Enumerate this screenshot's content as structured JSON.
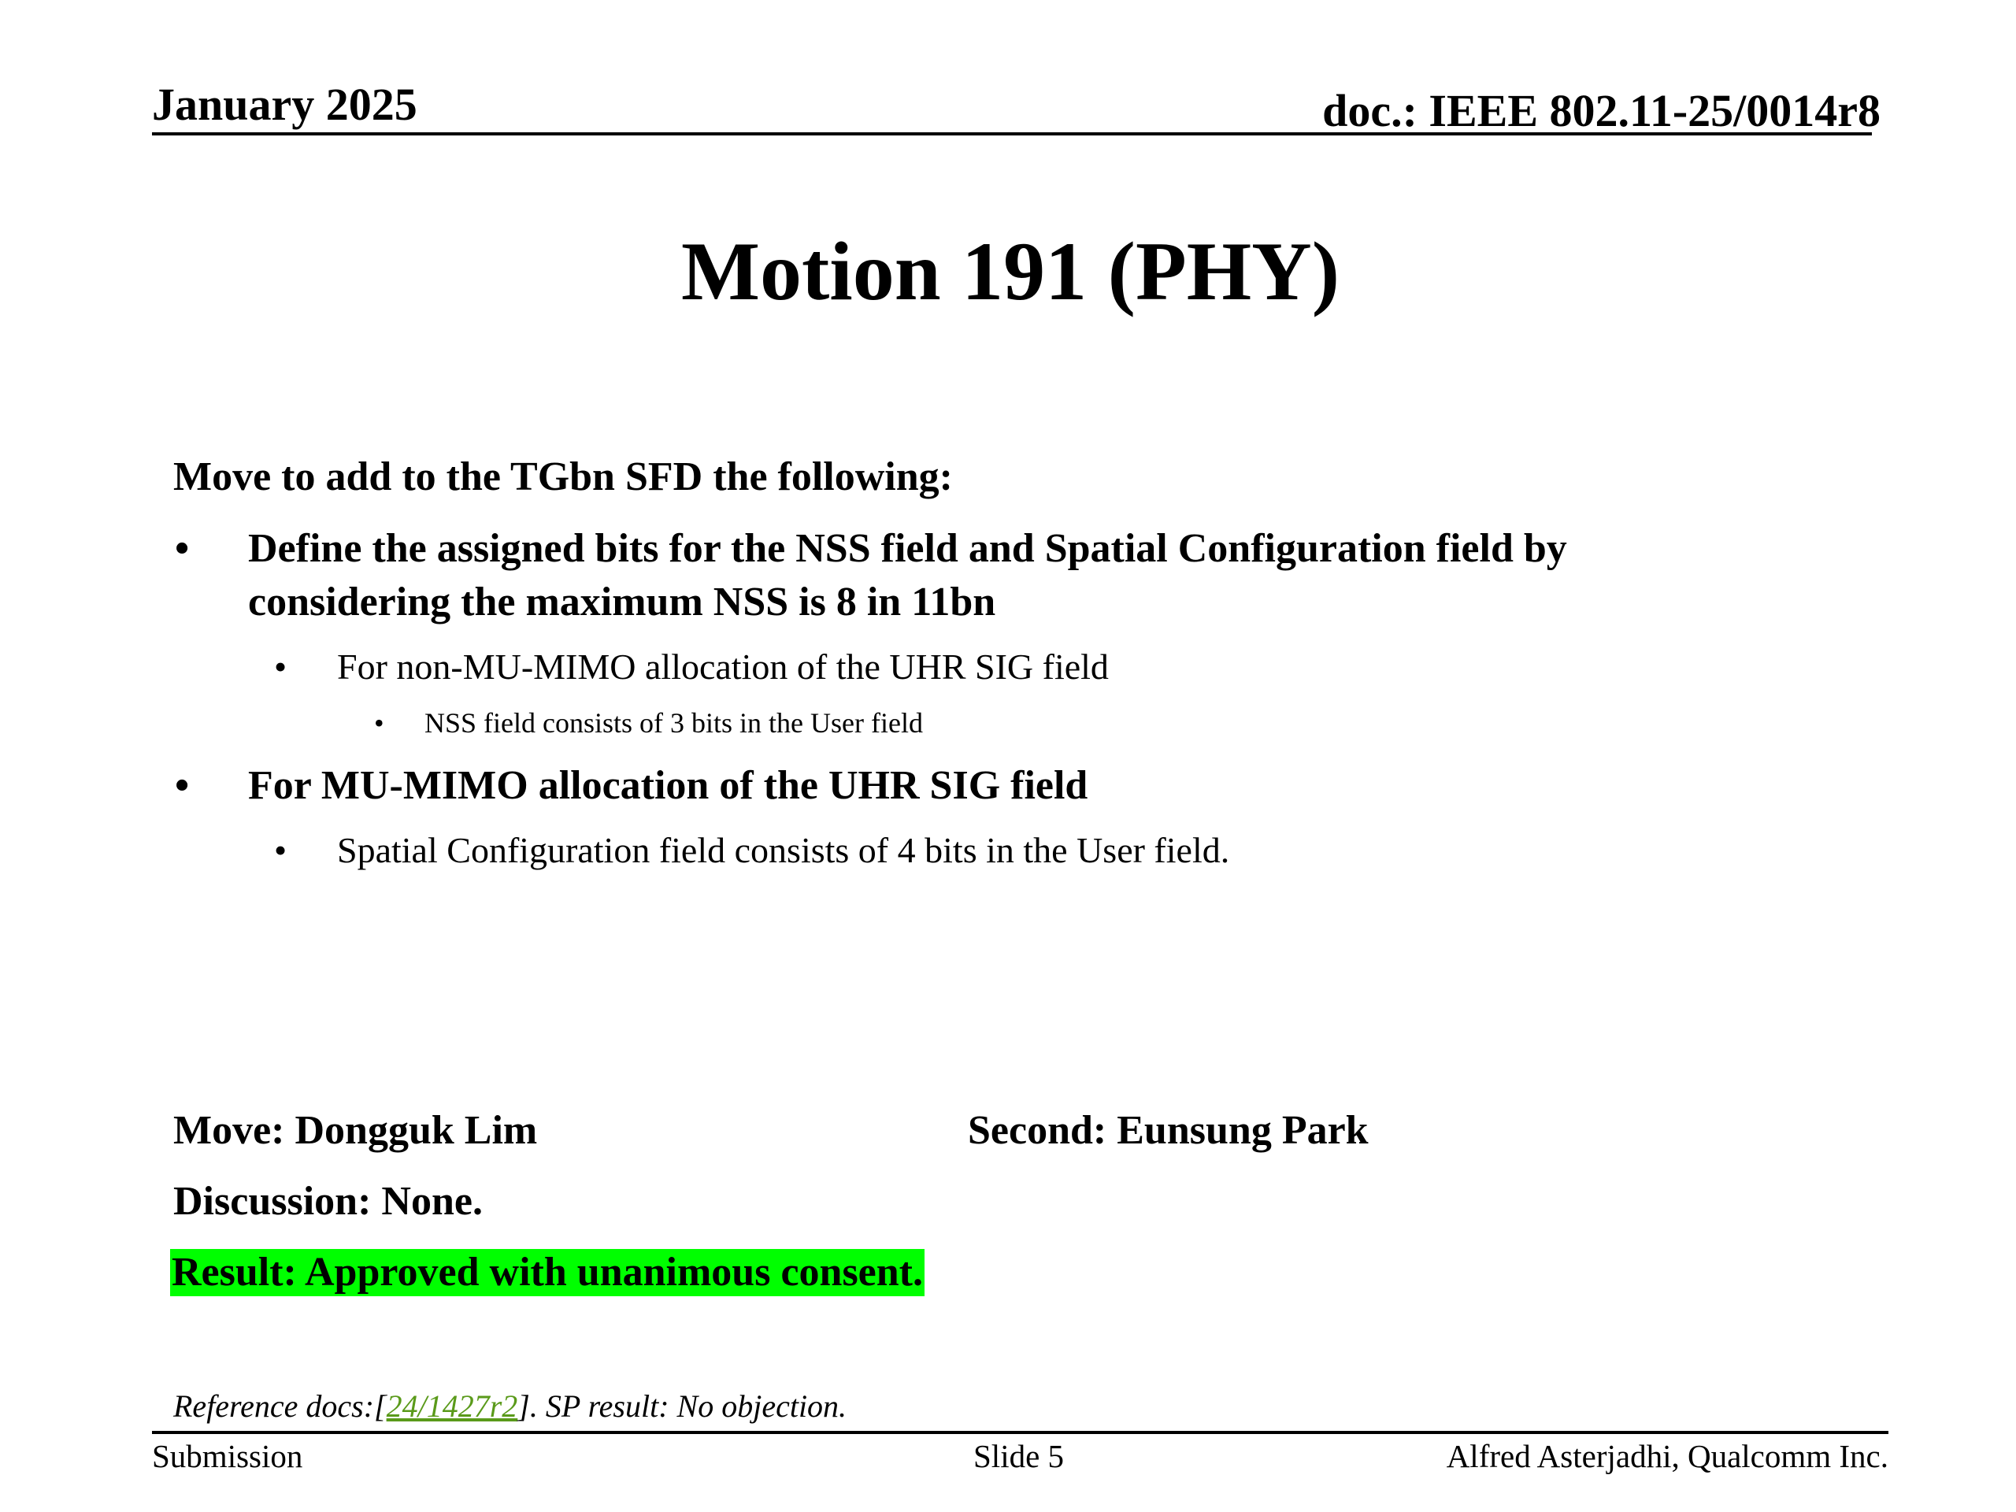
{
  "header": {
    "date": "January 2025",
    "doc_id": "doc.: IEEE 802.11-25/0014r8"
  },
  "title": "Motion 191 (PHY)",
  "body": {
    "intro": "Move to add to the TGbn SFD the following:",
    "bullet_char": "•",
    "bullets": [
      {
        "line1": "Define the assigned bits for the NSS field and Spatial Configuration field by",
        "line2": "considering the maximum NSS is 8 in 11bn",
        "sub": "For non-MU-MIMO allocation of the UHR SIG field",
        "subsub": "NSS field consists of 3 bits in the User field"
      },
      {
        "line1": "For MU-MIMO allocation of the UHR SIG field",
        "sub": "Spatial Configuration field consists of 4 bits in the User field."
      }
    ]
  },
  "motion": {
    "move": "Move: Dongguk Lim",
    "second": "Second: Eunsung Park",
    "discussion": "Discussion: None.",
    "result": "Result: Approved with unanimous consent.",
    "result_highlight_color": "#00ff00"
  },
  "reference": {
    "prefix": "Reference docs:[",
    "link": "24/1427r2",
    "suffix": "]. SP result: No objection."
  },
  "footer": {
    "left": "Submission",
    "center": "Slide 5",
    "right": "Alfred Asterjadhi, Qualcomm Inc."
  }
}
